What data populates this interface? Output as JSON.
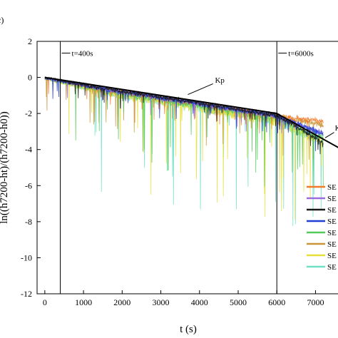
{
  "panel_label": "c)",
  "chart_data": {
    "type": "line",
    "xlabel": "t (s)",
    "ylabel": "ln((h7200-ht)/(h7200-h0))",
    "xlim": [
      -200,
      7600
    ],
    "ylim": [
      -12,
      2
    ],
    "xticks": [
      0,
      1000,
      2000,
      3000,
      4000,
      5000,
      6000,
      7000
    ],
    "yticks": [
      2,
      0,
      -2,
      -4,
      -6,
      -8,
      -10,
      -12
    ],
    "grid": false,
    "legend_position": "right",
    "vlines": [
      {
        "x": 400,
        "label": "t=400s"
      },
      {
        "x": 6000,
        "label": "t=6000s"
      }
    ],
    "fit_lines": [
      {
        "label": "Kp",
        "x": [
          0,
          6000
        ],
        "y": [
          0,
          -2.0
        ]
      },
      {
        "label": "K",
        "x": [
          6000,
          7600
        ],
        "y": [
          -2.0,
          -3.9
        ]
      }
    ],
    "series": [
      {
        "name": "SE",
        "color": "#f07c2a",
        "trend": [
          [
            0,
            0
          ],
          [
            6000,
            -2.0
          ],
          [
            7200,
            -2.3
          ]
        ],
        "noise": 0.25,
        "spike": 0.5
      },
      {
        "name": "SE",
        "color": "#9b6cdc",
        "trend": [
          [
            0,
            0
          ],
          [
            6000,
            -2.0
          ],
          [
            7200,
            -3.0
          ]
        ],
        "noise": 0.25,
        "spike": 0.5
      },
      {
        "name": "SE",
        "color": "#1a1a1a",
        "trend": [
          [
            0,
            0
          ],
          [
            6000,
            -2.0
          ],
          [
            7200,
            -3.5
          ]
        ],
        "noise": 0.2,
        "spike": 0.4
      },
      {
        "name": "SE",
        "color": "#1f3fd6",
        "trend": [
          [
            0,
            0
          ],
          [
            6000,
            -2.0
          ],
          [
            7200,
            -3.0
          ]
        ],
        "noise": 0.25,
        "spike": 0.5
      },
      {
        "name": "SE",
        "color": "#55c95a",
        "trend": [
          [
            0,
            0
          ],
          [
            6000,
            -2.1
          ],
          [
            7200,
            -3.2
          ]
        ],
        "noise": 0.35,
        "spike": 1.8
      },
      {
        "name": "SE",
        "color": "#c9973a",
        "trend": [
          [
            0,
            0
          ],
          [
            6000,
            -2.0
          ],
          [
            7200,
            -2.5
          ]
        ],
        "noise": 0.3,
        "spike": 1.0
      },
      {
        "name": "SE",
        "color": "#e6e03a",
        "trend": [
          [
            0,
            0
          ],
          [
            6000,
            -2.2
          ],
          [
            7200,
            -3.3
          ]
        ],
        "noise": 0.45,
        "spike": 2.5
      },
      {
        "name": "SE",
        "color": "#6de0c6",
        "trend": [
          [
            0,
            0
          ],
          [
            6000,
            -2.2
          ],
          [
            7200,
            -3.4
          ]
        ],
        "noise": 0.45,
        "spike": 2.8
      }
    ]
  }
}
